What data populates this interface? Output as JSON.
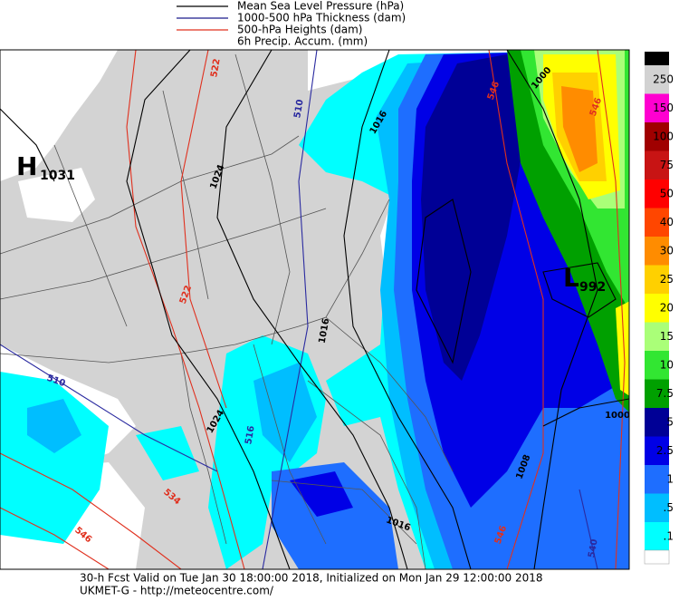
{
  "legend": [
    {
      "name": "Mean Sea Level Pressure (hPa)",
      "color": "#000000"
    },
    {
      "name": "1000-500 hPa Thickness (dam)",
      "color": "#1a1a8c"
    },
    {
      "name": "500-hPa Heights (dam)",
      "color": "#e0301e"
    },
    {
      "name": "6h Precip. Accum. (mm)",
      "color": null
    }
  ],
  "colorbar": {
    "levels": [
      {
        "label": "250",
        "color": "#d2d2d2"
      },
      {
        "label": "150",
        "color": "#ff00d0"
      },
      {
        "label": "100",
        "color": "#a00000"
      },
      {
        "label": "75",
        "color": "#c81414"
      },
      {
        "label": "50",
        "color": "#ff0000"
      },
      {
        "label": "40",
        "color": "#ff4600"
      },
      {
        "label": "30",
        "color": "#ff8c00"
      },
      {
        "label": "25",
        "color": "#ffd000"
      },
      {
        "label": "20",
        "color": "#ffff00"
      },
      {
        "label": "15",
        "color": "#aaff78"
      },
      {
        "label": "10",
        "color": "#32e632"
      },
      {
        "label": "7.5",
        "color": "#00a000"
      },
      {
        "label": "5",
        "color": "#000096"
      },
      {
        "label": "2.5",
        "color": "#0000e6"
      },
      {
        "label": "1",
        "color": "#1e6eff"
      },
      {
        "label": ".5",
        "color": "#00beff"
      },
      {
        "label": ".1",
        "color": "#00ffff"
      }
    ]
  },
  "map": {
    "high": {
      "letter": "H",
      "value": "1031"
    },
    "low": {
      "letter": "L",
      "value": "992"
    },
    "contour_labels": [
      "1024",
      "522",
      "522",
      "510",
      "510",
      "1016",
      "546",
      "546",
      "1016",
      "1024",
      "534",
      "546",
      "516",
      "1008",
      "1000",
      "1016",
      "540",
      "546",
      "1000"
    ]
  },
  "footer": {
    "line1": "30-h Fcst Valid on Tue Jan 30 18:00:00 2018, Initialized on Mon Jan 29 12:00:00 2018",
    "line2": "UKMET-G - http://meteocentre.com/"
  }
}
